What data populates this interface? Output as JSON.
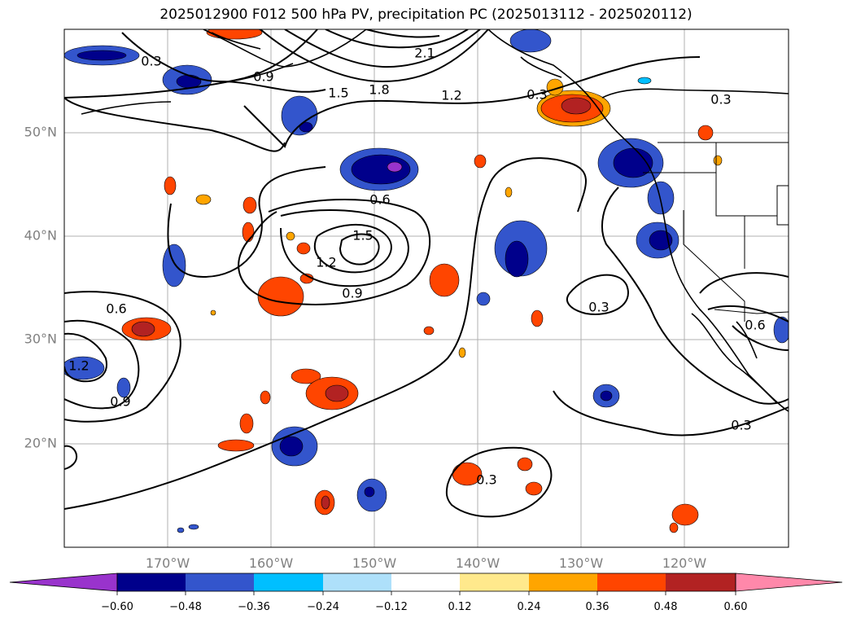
{
  "title": "2025012900 F012 500 hPa PV, precipitation PC (2025013112 - 2025020112)",
  "map": {
    "lon_range": [
      -180,
      -110
    ],
    "lat_range": [
      10,
      60
    ],
    "lat_labels": [
      "50°N",
      "40°N",
      "30°N",
      "20°N"
    ],
    "lon_labels": [
      "170°W",
      "160°W",
      "150°W",
      "140°W",
      "130°W",
      "120°W"
    ],
    "contour_labels": [
      "0.3",
      "0.9",
      "1.5",
      "1.8",
      "2.1",
      "1.2",
      "0.3",
      "0.3",
      "0.6",
      "1.5",
      "1.2",
      "0.9",
      "0.3",
      "0.6",
      "1.2",
      "0.9",
      "0.3",
      "0.3",
      "0.6"
    ]
  },
  "colorbar": {
    "ticks": [
      "−0.60",
      "−0.48",
      "−0.36",
      "−0.24",
      "−0.12",
      "0.12",
      "0.24",
      "0.36",
      "0.48",
      "0.60"
    ],
    "colors": [
      "#9933cc",
      "#00008b",
      "#3355cc",
      "#00bfff",
      "#aee0fa",
      "#ffffff",
      "#ffe98c",
      "#ffa500",
      "#ff4500",
      "#b22222",
      "#ff88aa"
    ]
  }
}
